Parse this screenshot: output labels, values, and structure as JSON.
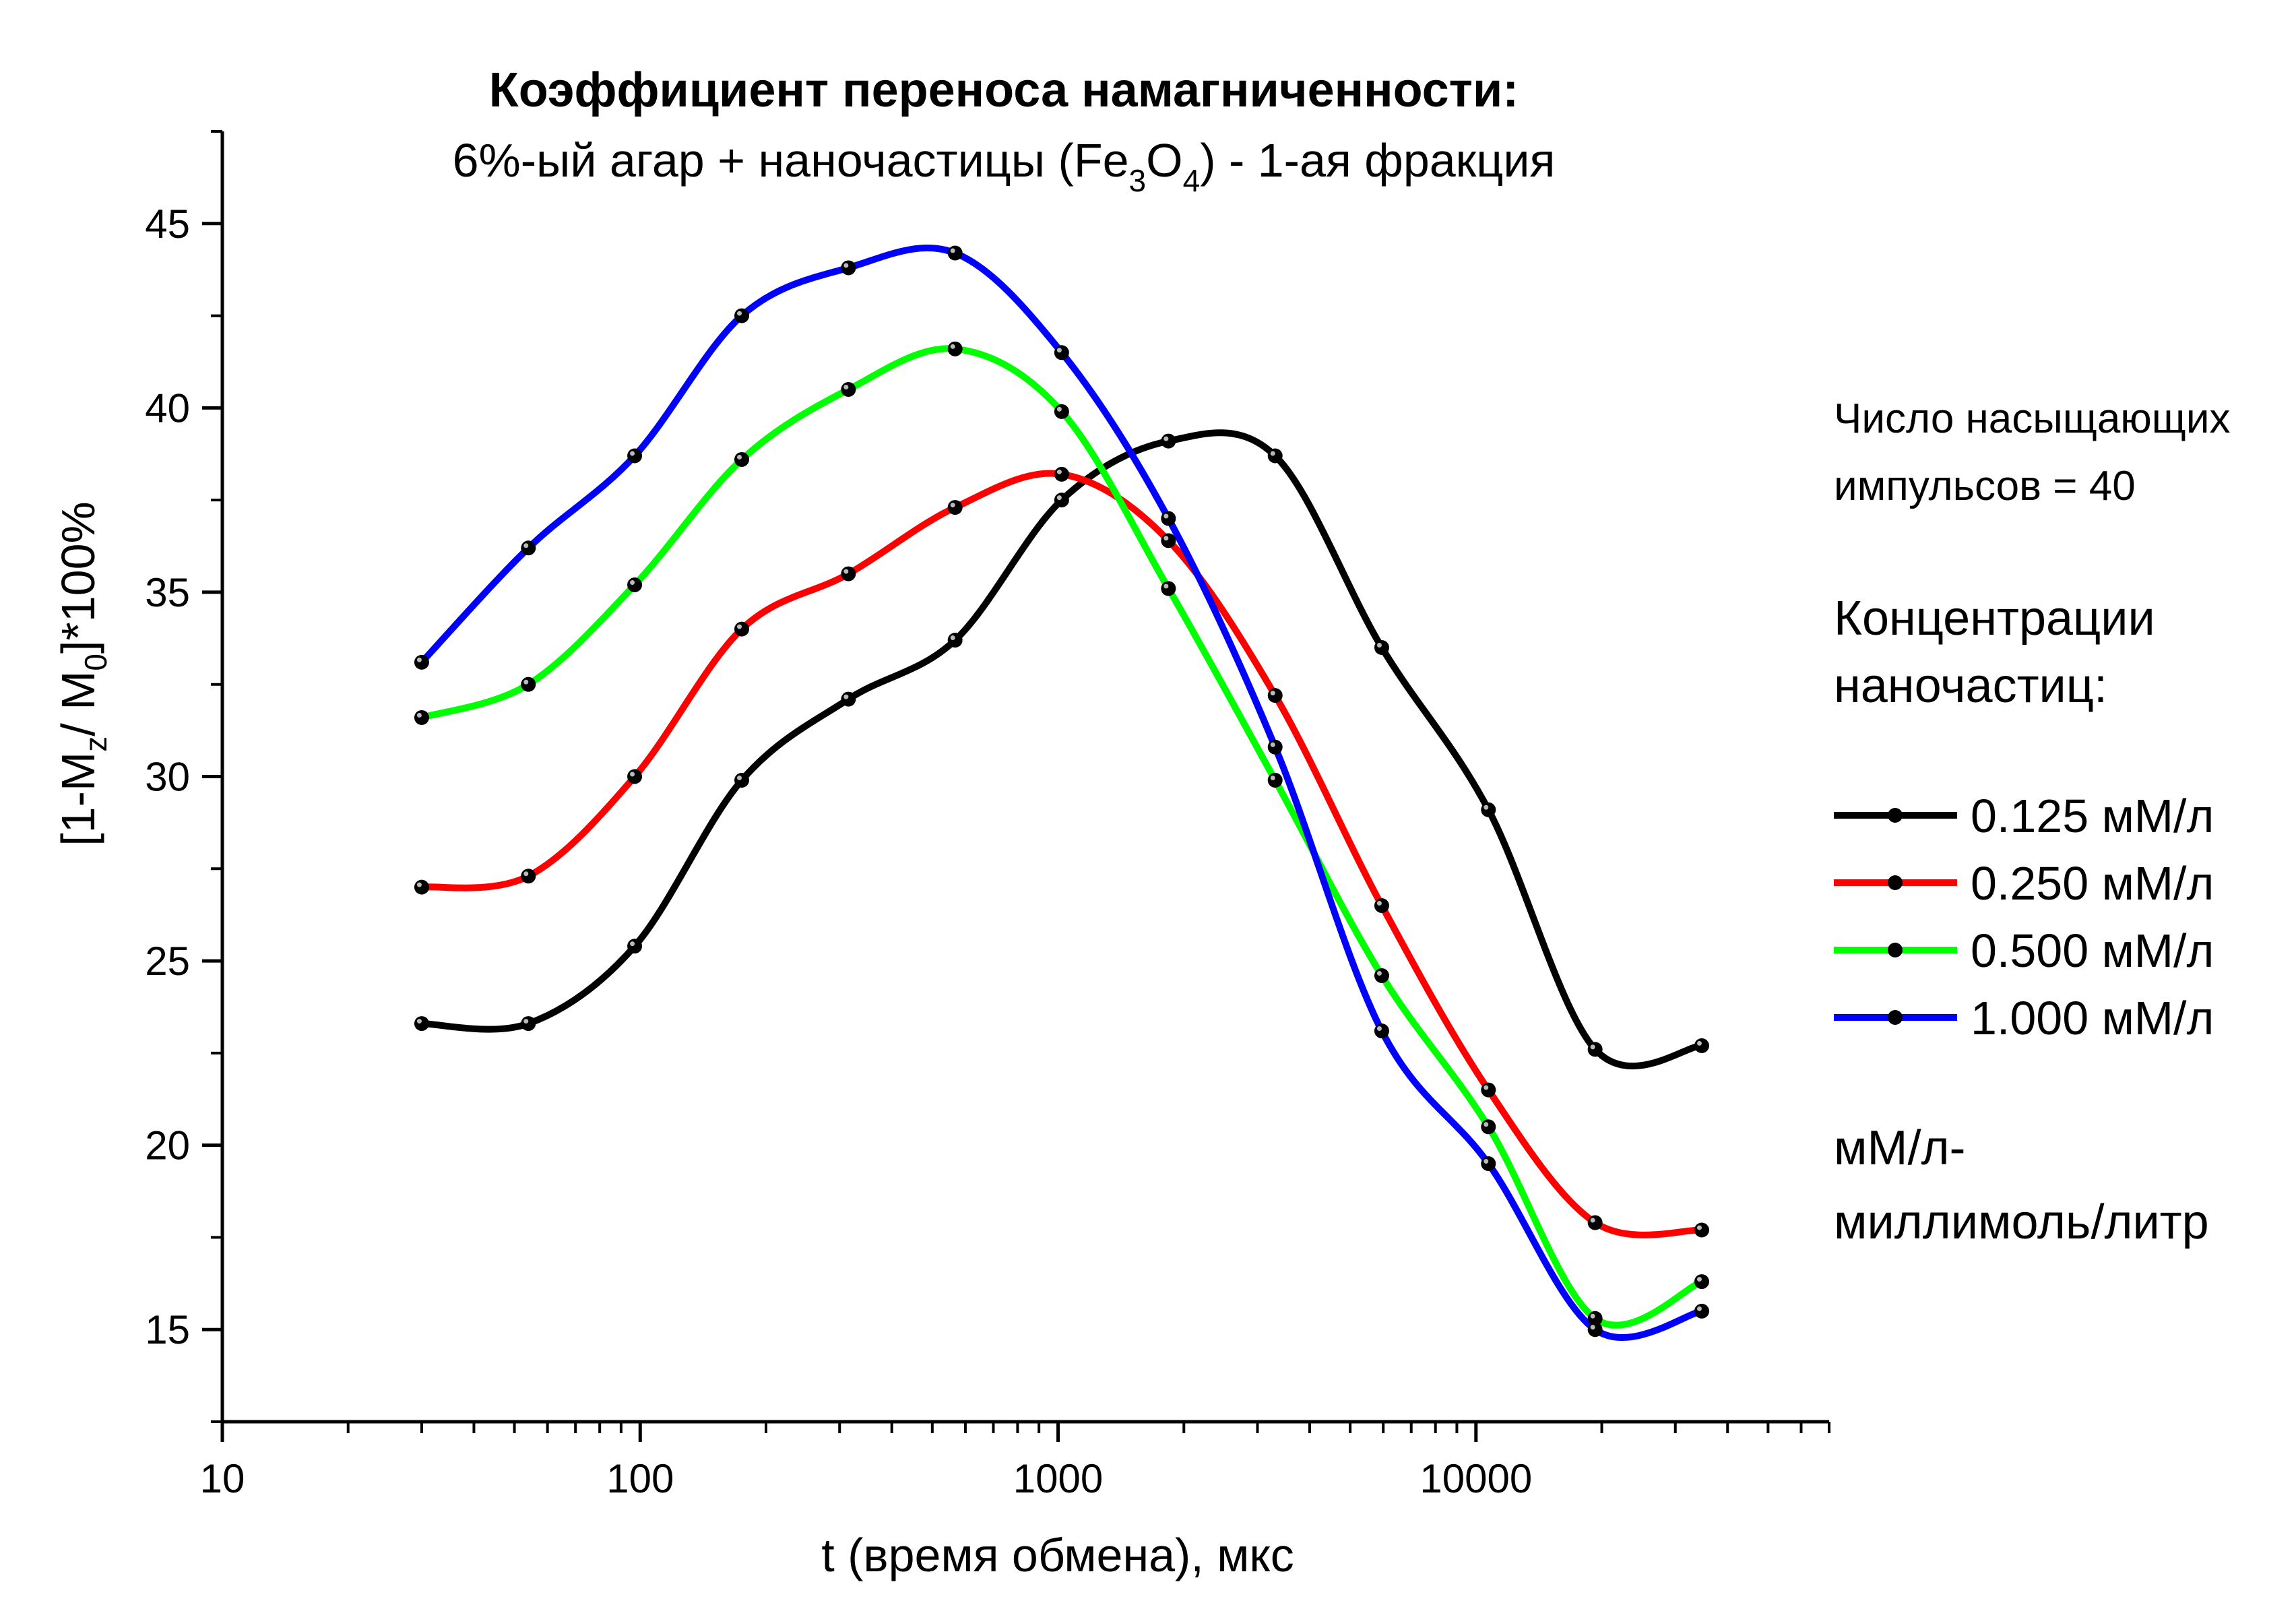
{
  "chart_data": {
    "type": "line",
    "title": "Коэффициент переноса намагниченности:",
    "subtitle": {
      "before": "6%-ый агар + наночастицы (Fe",
      "sub1": "3",
      "mid": "O",
      "sub2": "4",
      "after": ") - 1-ая фракция"
    },
    "xlabel": "t (время обмена), мкс",
    "ylabel": {
      "p1": "[1-M",
      "s1": "z",
      "p2": "/ M",
      "s2": "0",
      "p3": "]*100%"
    },
    "x_scale": "log",
    "xlim": [
      10,
      70000
    ],
    "ylim": [
      12.5,
      47.5
    ],
    "x_ticks": [
      10,
      100,
      1000,
      10000
    ],
    "x_tick_labels": [
      "10",
      "100",
      "1000",
      "10000"
    ],
    "y_ticks": [
      15,
      20,
      25,
      30,
      35,
      40,
      45
    ],
    "y_tick_labels": [
      "15",
      "20",
      "25",
      "30",
      "35",
      "40",
      "45"
    ],
    "grid": false,
    "legend_position": "right",
    "x": [
      30,
      54,
      97,
      175,
      315,
      567,
      1020,
      1837,
      3307,
      5950,
      10710,
      19280,
      34700
    ],
    "series": [
      {
        "name": "0.125 мМ/л",
        "color": "#000000",
        "values": [
          23.3,
          23.3,
          25.4,
          29.9,
          32.1,
          33.7,
          37.5,
          39.1,
          38.7,
          33.5,
          29.1,
          22.6,
          22.7
        ]
      },
      {
        "name": "0.250 мМ/л",
        "color": "#ff0000",
        "values": [
          27.0,
          27.3,
          30.0,
          34.0,
          35.5,
          37.3,
          38.2,
          36.4,
          32.2,
          26.5,
          21.5,
          17.9,
          17.7
        ]
      },
      {
        "name": "0.500 мМ/л",
        "color": "#00ff00",
        "values": [
          31.6,
          32.5,
          35.2,
          38.6,
          40.5,
          41.6,
          39.9,
          35.1,
          29.9,
          24.6,
          20.5,
          15.3,
          16.3
        ]
      },
      {
        "name": "1.000 мМ/л",
        "color": "#0000ff",
        "values": [
          33.1,
          36.2,
          38.7,
          42.5,
          43.8,
          44.2,
          41.5,
          37.0,
          30.8,
          23.1,
          19.5,
          15.0,
          15.5
        ]
      }
    ],
    "notes": {
      "pulses_line1": "Число насыщающих",
      "pulses_line2": "импульсов = 40",
      "conc_line1": "Концентрации",
      "conc_line2": "наночастиц:",
      "unit_line1": "мМ/л-",
      "unit_line2": "миллимоль/литр"
    }
  }
}
